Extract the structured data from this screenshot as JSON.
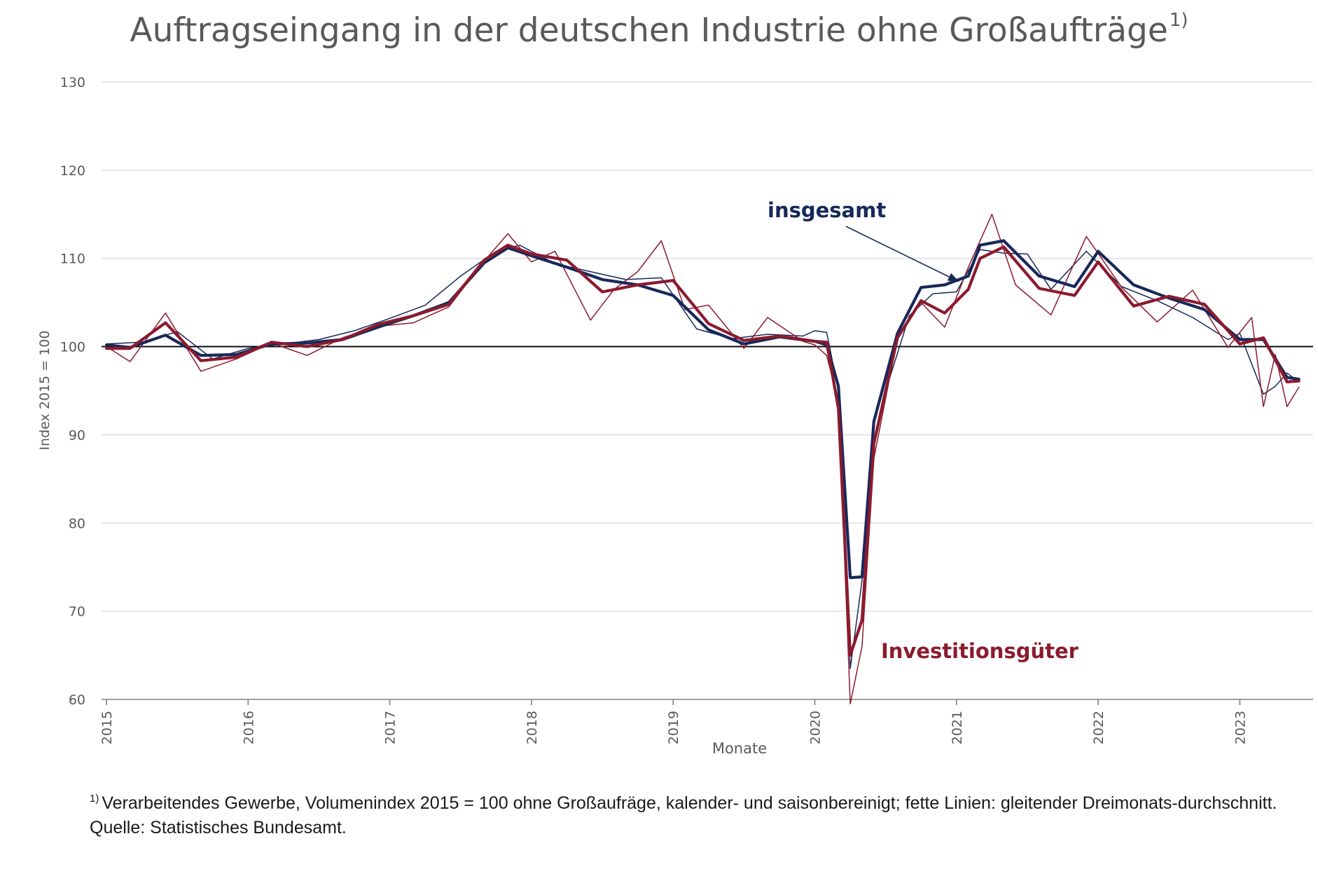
{
  "title": "Auftragseingang in der deutschen Industrie ohne Großaufträge",
  "title_footnote_mark": "1)",
  "footnote": {
    "mark": "1)",
    "text": "Verarbeitendes Gewerbe, Volumenindex 2015 = 100  ohne Großaufräge, kalender- und saisonbereinigt; fette Linien: gleitender Dreimonats-durchschnitt.",
    "source": "Quelle: Statistisches Bundesamt."
  },
  "chart_data": {
    "type": "line",
    "title": "Auftragseingang in der deutschen Industrie ohne Großaufträge",
    "ylabel": "Index 2015 = 100",
    "xlabel": "Monate",
    "ylim": [
      60,
      130
    ],
    "yticks": [
      60,
      70,
      80,
      90,
      100,
      110,
      120,
      130
    ],
    "xticks": [
      "2015",
      "2016",
      "2017",
      "2018",
      "2019",
      "2020",
      "2021",
      "2022",
      "2023"
    ],
    "x_start": "2015-01",
    "x_end": "2023-06",
    "reference_line": 100,
    "grid": true,
    "colors": {
      "insgesamt": "#17285a",
      "investitionsgueter": "#8c1a2e",
      "grid": "#d9d9d9",
      "axis": "#7f7f7f",
      "reference": "#000000"
    },
    "annotations": [
      {
        "text": "insgesamt",
        "series": "insgesamt",
        "arrow_to": {
          "x": "2021-01",
          "y": 107.5
        }
      },
      {
        "text": "Investitionsgüter",
        "series": "investitionsgueter"
      }
    ],
    "series": [
      {
        "name": "insgesamt",
        "style": "monthly",
        "x": [
          "2015-01",
          "2015-04",
          "2015-07",
          "2015-10",
          "2016-01",
          "2016-04",
          "2016-07",
          "2016-10",
          "2017-01",
          "2017-04",
          "2017-07",
          "2017-10",
          "2017-12",
          "2018-03",
          "2018-06",
          "2018-09",
          "2018-12",
          "2019-03",
          "2019-06",
          "2019-09",
          "2019-12",
          "2020-01",
          "2020-02",
          "2020-03",
          "2020-04",
          "2020-05",
          "2020-06",
          "2020-07",
          "2020-09",
          "2020-11",
          "2021-01",
          "2021-03",
          "2021-05",
          "2021-07",
          "2021-09",
          "2021-12",
          "2022-03",
          "2022-06",
          "2022-09",
          "2022-12",
          "2023-01",
          "2023-03",
          "2023-04",
          "2023-05",
          "2023-06"
        ],
        "values": [
          100.3,
          100.5,
          101.7,
          98.6,
          99.8,
          100.3,
          100.8,
          101.8,
          103.2,
          104.7,
          108.0,
          110.8,
          111.5,
          109.4,
          108.5,
          107.6,
          107.8,
          102.0,
          100.9,
          101.4,
          101.2,
          101.8,
          101.6,
          95.0,
          63.5,
          73.5,
          89.0,
          95.0,
          103.5,
          106.0,
          106.2,
          111.0,
          110.6,
          110.5,
          106.5,
          110.8,
          106.8,
          105.2,
          103.3,
          100.8,
          101.5,
          94.6,
          95.5,
          97.0,
          96.0
        ]
      },
      {
        "name": "insgesamt",
        "style": "moving-average",
        "x": [
          "2015-01",
          "2015-03",
          "2015-06",
          "2015-09",
          "2015-12",
          "2016-03",
          "2016-06",
          "2016-09",
          "2016-12",
          "2017-03",
          "2017-06",
          "2017-09",
          "2017-11",
          "2018-01",
          "2018-04",
          "2018-07",
          "2018-10",
          "2019-01",
          "2019-04",
          "2019-07",
          "2019-10",
          "2020-01",
          "2020-02",
          "2020-03",
          "2020-04",
          "2020-05",
          "2020-06",
          "2020-08",
          "2020-10",
          "2020-12",
          "2021-02",
          "2021-03",
          "2021-05",
          "2021-08",
          "2021-11",
          "2022-01",
          "2022-04",
          "2022-07",
          "2022-10",
          "2023-01",
          "2023-03",
          "2023-05",
          "2023-06"
        ],
        "values": [
          100.2,
          99.9,
          101.3,
          99.0,
          99.1,
          100.3,
          100.4,
          100.8,
          102.2,
          103.5,
          105.0,
          109.5,
          111.2,
          110.3,
          109.0,
          107.6,
          107.0,
          105.8,
          101.9,
          100.3,
          101.1,
          100.6,
          100.2,
          95.5,
          73.8,
          73.9,
          91.5,
          101.5,
          106.7,
          107.0,
          108.0,
          111.5,
          112.0,
          108.0,
          106.8,
          110.8,
          107.0,
          105.5,
          104.2,
          100.8,
          100.8,
          96.5,
          96.3
        ]
      },
      {
        "name": "Investitionsgüter",
        "style": "monthly",
        "x": [
          "2015-01",
          "2015-03",
          "2015-06",
          "2015-09",
          "2015-12",
          "2016-03",
          "2016-06",
          "2016-09",
          "2016-12",
          "2017-03",
          "2017-06",
          "2017-09",
          "2017-11",
          "2018-01",
          "2018-03",
          "2018-06",
          "2018-08",
          "2018-10",
          "2018-12",
          "2019-02",
          "2019-04",
          "2019-07",
          "2019-09",
          "2019-12",
          "2020-01",
          "2020-02",
          "2020-03",
          "2020-04",
          "2020-05",
          "2020-06",
          "2020-08",
          "2020-10",
          "2020-12",
          "2021-02",
          "2021-04",
          "2021-06",
          "2021-09",
          "2021-12",
          "2022-03",
          "2022-06",
          "2022-09",
          "2022-12",
          "2023-02",
          "2023-03",
          "2023-04",
          "2023-05",
          "2023-06"
        ],
        "values": [
          100.0,
          98.3,
          103.8,
          97.2,
          98.6,
          100.4,
          99.0,
          101.0,
          102.3,
          102.7,
          104.5,
          109.7,
          112.8,
          109.6,
          110.8,
          103.0,
          106.5,
          108.5,
          112.0,
          104.2,
          104.7,
          99.8,
          103.3,
          100.6,
          100.2,
          99.0,
          93.8,
          59.5,
          66.0,
          87.3,
          101.0,
          105.0,
          102.2,
          109.0,
          115.0,
          107.0,
          103.6,
          112.5,
          106.7,
          102.8,
          106.4,
          99.9,
          103.3,
          93.2,
          99.1,
          93.2,
          95.4
        ]
      },
      {
        "name": "Investitionsgüter",
        "style": "moving-average",
        "x": [
          "2015-01",
          "2015-03",
          "2015-06",
          "2015-09",
          "2015-12",
          "2016-03",
          "2016-06",
          "2016-09",
          "2016-12",
          "2017-03",
          "2017-06",
          "2017-09",
          "2017-11",
          "2018-01",
          "2018-04",
          "2018-07",
          "2018-10",
          "2019-01",
          "2019-04",
          "2019-07",
          "2019-10",
          "2020-01",
          "2020-02",
          "2020-03",
          "2020-04",
          "2020-05",
          "2020-06",
          "2020-08",
          "2020-10",
          "2020-12",
          "2021-02",
          "2021-03",
          "2021-05",
          "2021-08",
          "2021-11",
          "2022-01",
          "2022-04",
          "2022-07",
          "2022-10",
          "2023-01",
          "2023-03",
          "2023-05",
          "2023-06"
        ],
        "values": [
          99.8,
          99.8,
          102.7,
          98.4,
          98.8,
          100.5,
          100.0,
          100.8,
          102.5,
          103.5,
          104.8,
          109.8,
          111.5,
          110.5,
          109.8,
          106.2,
          107.0,
          107.5,
          102.6,
          100.7,
          101.2,
          100.6,
          100.5,
          93.0,
          65.0,
          69.0,
          89.0,
          101.0,
          105.2,
          103.8,
          106.5,
          110.0,
          111.3,
          106.6,
          105.8,
          109.6,
          104.6,
          105.7,
          104.8,
          100.3,
          101.0,
          96.0,
          96.1
        ]
      }
    ]
  }
}
